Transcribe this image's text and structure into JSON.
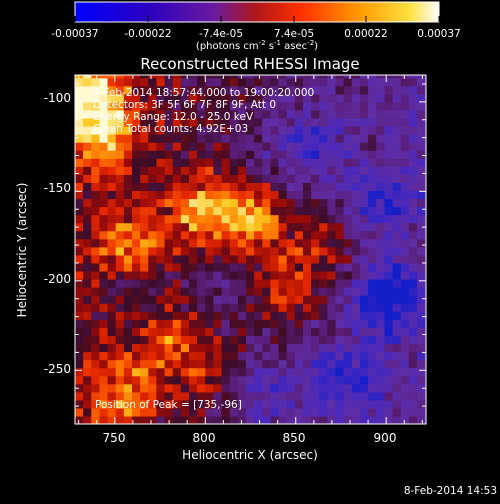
{
  "colorbar": {
    "ticks": [
      "-0.00037",
      "-0.00022",
      "-7.4e-05",
      "7.4e-05",
      "0.00022",
      "0.00037"
    ],
    "unit_main": "(photons cm",
    "unit_exp1": "-2",
    "unit_mid": " s",
    "unit_exp2": "-1",
    "unit_tail": " asec",
    "unit_exp3": "-2",
    "unit_close": ")"
  },
  "chart_data": {
    "type": "heatmap",
    "title": "Reconstructed RHESSI Image",
    "xlabel": "Heliocentric X (arcsec)",
    "ylabel": "Heliocentric Y (arcsec)",
    "xlim": [
      728,
      922
    ],
    "ylim": [
      -280,
      -85
    ],
    "xticks": [
      750,
      800,
      850,
      900
    ],
    "yticks": [
      -100,
      -150,
      -200,
      -250
    ],
    "colormap": "IDL color table 5 style (blue - purple - red - orange - yellow - white)",
    "colorbar_range": [
      -0.00037,
      0.00037
    ],
    "peak": {
      "x": 735,
      "y": -96
    },
    "bright_regions": [
      {
        "x": 735,
        "y": -96,
        "level": 1.0
      },
      {
        "x": 825,
        "y": -165,
        "level": 0.95
      },
      {
        "x": 800,
        "y": -160,
        "level": 0.85
      },
      {
        "x": 745,
        "y": -120,
        "level": 0.8
      },
      {
        "x": 760,
        "y": -180,
        "level": 0.7
      },
      {
        "x": 865,
        "y": -180,
        "level": 0.6
      },
      {
        "x": 845,
        "y": -205,
        "level": 0.6
      },
      {
        "x": 780,
        "y": -232,
        "level": 0.55
      },
      {
        "x": 755,
        "y": -262,
        "level": 0.6
      },
      {
        "x": 805,
        "y": -252,
        "level": 0.35
      }
    ],
    "dark_regions": [
      {
        "x": 900,
        "y": -210,
        "level": -0.9
      },
      {
        "x": 875,
        "y": -255,
        "level": -0.75
      },
      {
        "x": 855,
        "y": -125,
        "level": -0.6
      },
      {
        "x": 895,
        "y": -155,
        "level": -0.5
      },
      {
        "x": 830,
        "y": -265,
        "level": -0.6
      },
      {
        "x": 760,
        "y": -205,
        "level": -0.3
      },
      {
        "x": 810,
        "y": -205,
        "level": -0.25
      }
    ]
  },
  "annotations": {
    "time_range": "7-Feb-2014 18:57:44.000 to 19:00:20.000",
    "detectors": "Detectors: 3F 5F 6F 7F 8F 9F, Att 0",
    "energy": "Energy Range: 12.0 - 25.0 keV",
    "clean": "Clean    Total counts: 4.92E+03",
    "peak_text": "Position of Peak = [735,-96]"
  },
  "footer": {
    "timestamp": "8-Feb-2014 14:53"
  }
}
